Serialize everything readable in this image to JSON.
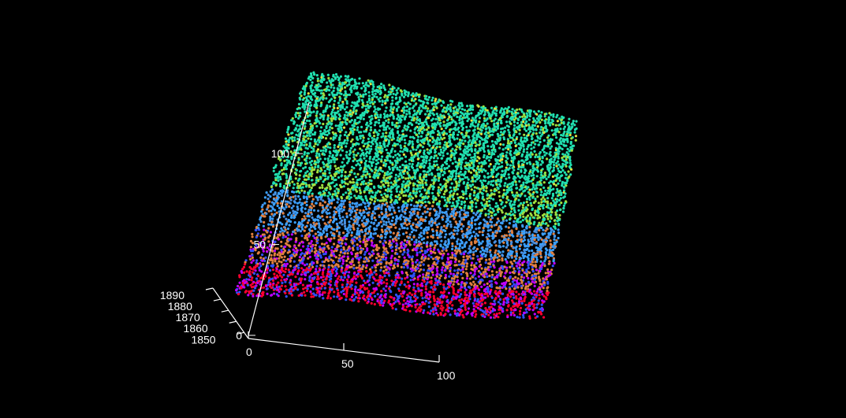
{
  "chart_data": {
    "type": "scatter",
    "subtype": "3d-point-cloud",
    "background": "#000000",
    "axis_color": "#ffffff",
    "x_axis": {
      "ticks": [
        0,
        50,
        100
      ],
      "range": [
        0,
        100
      ]
    },
    "y_axis": {
      "ticks": [
        1850,
        1860,
        1870,
        1880,
        1890
      ],
      "range": [
        1850,
        1890
      ]
    },
    "z_axis": {
      "ticks": [
        0,
        50,
        100
      ],
      "tick_labels": [
        "0",
        "50",
        "100"
      ],
      "range": [
        0,
        100
      ]
    },
    "colormap": [
      "#ff0030",
      "#c000ff",
      "#3050ff",
      "#4a90e0",
      "#e08040",
      "#3aa0ff",
      "#20e0b0",
      "#a0e040",
      "#e0e040"
    ],
    "grid": false,
    "legend": "none"
  }
}
